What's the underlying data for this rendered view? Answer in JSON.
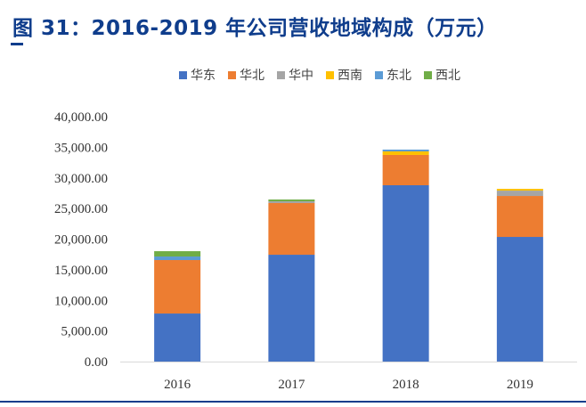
{
  "title": "图 31：2016-2019 年公司营收地域构成（万元）",
  "chart_data": {
    "type": "bar",
    "stacked": true,
    "title": "图 31：2016-2019 年公司营收地域构成（万元）",
    "categories": [
      "2016",
      "2017",
      "2018",
      "2019"
    ],
    "series": [
      {
        "name": "华东",
        "color": "#4472c4",
        "values": [
          7850,
          17450,
          28800,
          20360
        ]
      },
      {
        "name": "华北",
        "color": "#ed7d31",
        "values": [
          8730,
          8440,
          4950,
          6690
        ]
      },
      {
        "name": "华中",
        "color": "#a5a5a5",
        "values": [
          0,
          290,
          0,
          870
        ]
      },
      {
        "name": "西南",
        "color": "#ffc000",
        "values": [
          0,
          0,
          580,
          290
        ]
      },
      {
        "name": "东北",
        "color": "#5b9bd5",
        "values": [
          580,
          0,
          290,
          0
        ]
      },
      {
        "name": "西北",
        "color": "#70ad47",
        "values": [
          870,
          290,
          0,
          0
        ]
      }
    ],
    "ylim": [
      0,
      40000
    ],
    "yticks": [
      "0.00",
      "5,000.00",
      "10,000.00",
      "15,000.00",
      "20,000.00",
      "25,000.00",
      "30,000.00",
      "35,000.00",
      "40,000.00"
    ],
    "grid": false,
    "legend": "top"
  }
}
